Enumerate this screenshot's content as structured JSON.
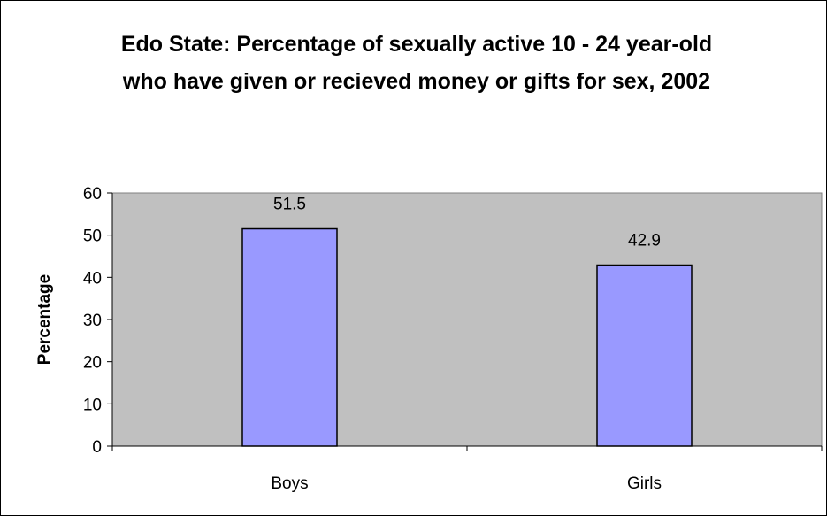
{
  "chart_data": {
    "type": "bar",
    "title": "Edo State: Percentage of sexually active 10 - 24 year-old who have given or recieved money or gifts for sex, 2002",
    "xlabel": "",
    "ylabel": "Percentage",
    "categories": [
      "Boys",
      "Girls"
    ],
    "values": [
      51.5,
      42.9
    ],
    "data_labels": [
      "51.5",
      "42.9"
    ],
    "ylim": [
      0,
      60
    ],
    "yticks": [
      0,
      10,
      20,
      30,
      40,
      50,
      60
    ],
    "grid": false,
    "legend": "none",
    "colors": {
      "bar_fill": "#9999ff",
      "bar_stroke": "#000000",
      "plot_background": "#c0c0c0"
    }
  }
}
